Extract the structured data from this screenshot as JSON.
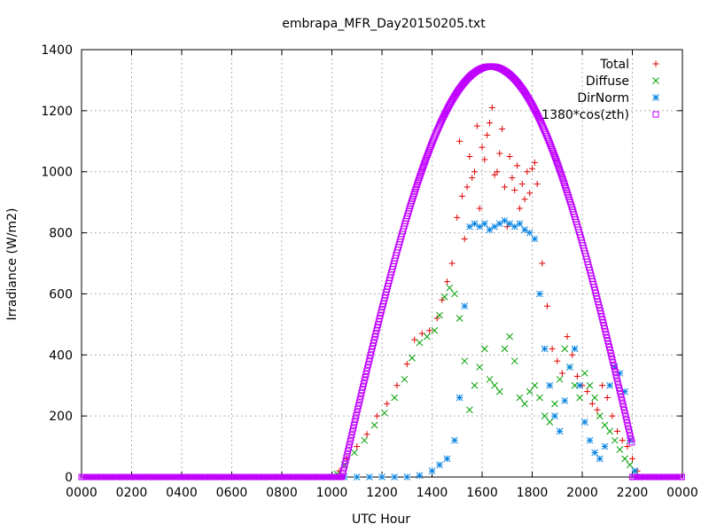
{
  "chart_data": {
    "type": "scatter",
    "title": "embrapa_MFR_Day20150205.txt",
    "xlabel": "UTC Hour",
    "ylabel": "Irradiance (W/m2)",
    "xlim": [
      0,
      24
    ],
    "ylim": [
      0,
      1400
    ],
    "grid": true,
    "legend_position": "top-right",
    "x_tick_values": [
      0,
      2,
      4,
      6,
      8,
      10,
      12,
      14,
      16,
      18,
      20,
      22,
      24
    ],
    "x_tick_labels": [
      "0000",
      "0200",
      "0400",
      "0600",
      "0800",
      "1000",
      "1200",
      "1400",
      "1600",
      "1800",
      "2000",
      "2200",
      "0000"
    ],
    "y_tick_values": [
      0,
      200,
      400,
      600,
      800,
      1000,
      1200,
      1400
    ],
    "y_tick_labels": [
      "0",
      "200",
      "400",
      "600",
      "800",
      "1000",
      "1200",
      "1400"
    ],
    "series": [
      {
        "name": "Total",
        "marker": "plus",
        "color": "#e00000",
        "points": [
          [
            10.3,
            20
          ],
          [
            10.6,
            60
          ],
          [
            11.0,
            100
          ],
          [
            11.4,
            140
          ],
          [
            11.8,
            200
          ],
          [
            12.2,
            240
          ],
          [
            12.6,
            300
          ],
          [
            13.0,
            370
          ],
          [
            13.3,
            450
          ],
          [
            13.6,
            470
          ],
          [
            13.9,
            480
          ],
          [
            14.2,
            520
          ],
          [
            14.4,
            580
          ],
          [
            14.6,
            640
          ],
          [
            14.8,
            700
          ],
          [
            15.0,
            850
          ],
          [
            15.1,
            1100
          ],
          [
            15.2,
            920
          ],
          [
            15.3,
            780
          ],
          [
            15.4,
            950
          ],
          [
            15.5,
            1050
          ],
          [
            15.6,
            980
          ],
          [
            15.7,
            1000
          ],
          [
            15.8,
            1150
          ],
          [
            15.9,
            880
          ],
          [
            16.0,
            1080
          ],
          [
            16.1,
            1040
          ],
          [
            16.2,
            1120
          ],
          [
            16.3,
            1160
          ],
          [
            16.4,
            1210
          ],
          [
            16.5,
            990
          ],
          [
            16.6,
            1000
          ],
          [
            16.7,
            1060
          ],
          [
            16.8,
            1140
          ],
          [
            16.9,
            950
          ],
          [
            17.0,
            820
          ],
          [
            17.1,
            1050
          ],
          [
            17.2,
            980
          ],
          [
            17.3,
            940
          ],
          [
            17.4,
            1020
          ],
          [
            17.5,
            880
          ],
          [
            17.6,
            960
          ],
          [
            17.7,
            910
          ],
          [
            17.8,
            1000
          ],
          [
            17.9,
            930
          ],
          [
            18.0,
            1010
          ],
          [
            18.1,
            1030
          ],
          [
            18.2,
            960
          ],
          [
            18.4,
            700
          ],
          [
            18.6,
            560
          ],
          [
            18.8,
            420
          ],
          [
            19.0,
            380
          ],
          [
            19.2,
            340
          ],
          [
            19.4,
            460
          ],
          [
            19.6,
            400
          ],
          [
            19.8,
            330
          ],
          [
            20.0,
            300
          ],
          [
            20.2,
            280
          ],
          [
            20.4,
            240
          ],
          [
            20.6,
            220
          ],
          [
            20.8,
            300
          ],
          [
            21.0,
            260
          ],
          [
            21.2,
            200
          ],
          [
            21.4,
            150
          ],
          [
            21.6,
            120
          ],
          [
            21.8,
            100
          ],
          [
            22.0,
            60
          ],
          [
            22.2,
            20
          ]
        ]
      },
      {
        "name": "Diffuse",
        "marker": "x",
        "color": "#00a000",
        "points": [
          [
            10.2,
            10
          ],
          [
            10.5,
            40
          ],
          [
            10.9,
            80
          ],
          [
            11.3,
            120
          ],
          [
            11.7,
            170
          ],
          [
            12.1,
            210
          ],
          [
            12.5,
            260
          ],
          [
            12.9,
            320
          ],
          [
            13.2,
            390
          ],
          [
            13.5,
            440
          ],
          [
            13.8,
            460
          ],
          [
            14.1,
            480
          ],
          [
            14.3,
            530
          ],
          [
            14.5,
            590
          ],
          [
            14.7,
            620
          ],
          [
            14.9,
            600
          ],
          [
            15.1,
            520
          ],
          [
            15.3,
            380
          ],
          [
            15.5,
            220
          ],
          [
            15.7,
            300
          ],
          [
            15.9,
            360
          ],
          [
            16.1,
            420
          ],
          [
            16.3,
            320
          ],
          [
            16.5,
            300
          ],
          [
            16.7,
            280
          ],
          [
            16.9,
            420
          ],
          [
            17.1,
            460
          ],
          [
            17.3,
            380
          ],
          [
            17.5,
            260
          ],
          [
            17.7,
            240
          ],
          [
            17.9,
            280
          ],
          [
            18.1,
            300
          ],
          [
            18.3,
            260
          ],
          [
            18.5,
            200
          ],
          [
            18.7,
            180
          ],
          [
            18.9,
            240
          ],
          [
            19.1,
            320
          ],
          [
            19.3,
            420
          ],
          [
            19.5,
            360
          ],
          [
            19.7,
            300
          ],
          [
            19.9,
            260
          ],
          [
            20.1,
            340
          ],
          [
            20.3,
            300
          ],
          [
            20.5,
            260
          ],
          [
            20.7,
            200
          ],
          [
            20.9,
            170
          ],
          [
            21.1,
            150
          ],
          [
            21.3,
            120
          ],
          [
            21.5,
            90
          ],
          [
            21.7,
            60
          ],
          [
            21.9,
            40
          ],
          [
            22.1,
            20
          ]
        ]
      },
      {
        "name": "DirNorm",
        "marker": "star",
        "color": "#0080e0",
        "points": [
          [
            10.0,
            0
          ],
          [
            10.5,
            0
          ],
          [
            11.0,
            0
          ],
          [
            11.5,
            0
          ],
          [
            12.0,
            0
          ],
          [
            12.5,
            0
          ],
          [
            13.0,
            0
          ],
          [
            13.5,
            5
          ],
          [
            14.0,
            20
          ],
          [
            14.3,
            40
          ],
          [
            14.6,
            60
          ],
          [
            14.9,
            120
          ],
          [
            15.1,
            260
          ],
          [
            15.3,
            560
          ],
          [
            15.5,
            820
          ],
          [
            15.7,
            830
          ],
          [
            15.9,
            820
          ],
          [
            16.1,
            830
          ],
          [
            16.3,
            810
          ],
          [
            16.5,
            820
          ],
          [
            16.7,
            830
          ],
          [
            16.9,
            840
          ],
          [
            17.1,
            830
          ],
          [
            17.3,
            820
          ],
          [
            17.5,
            830
          ],
          [
            17.7,
            810
          ],
          [
            17.9,
            800
          ],
          [
            18.1,
            780
          ],
          [
            18.3,
            600
          ],
          [
            18.5,
            420
          ],
          [
            18.7,
            300
          ],
          [
            18.9,
            200
          ],
          [
            19.1,
            150
          ],
          [
            19.3,
            250
          ],
          [
            19.5,
            360
          ],
          [
            19.7,
            420
          ],
          [
            19.9,
            300
          ],
          [
            20.1,
            180
          ],
          [
            20.3,
            120
          ],
          [
            20.5,
            80
          ],
          [
            20.7,
            60
          ],
          [
            20.9,
            100
          ],
          [
            21.1,
            300
          ],
          [
            21.3,
            360
          ],
          [
            21.5,
            340
          ],
          [
            21.7,
            280
          ],
          [
            21.9,
            120
          ],
          [
            22.1,
            20
          ]
        ]
      },
      {
        "name": "1380*cos(zth)",
        "marker": "square",
        "color": "#c000ff",
        "curve": {
          "start": 10.1,
          "end": 22.0,
          "peak_x": 16.35,
          "peak_y": 1345
        }
      }
    ]
  }
}
